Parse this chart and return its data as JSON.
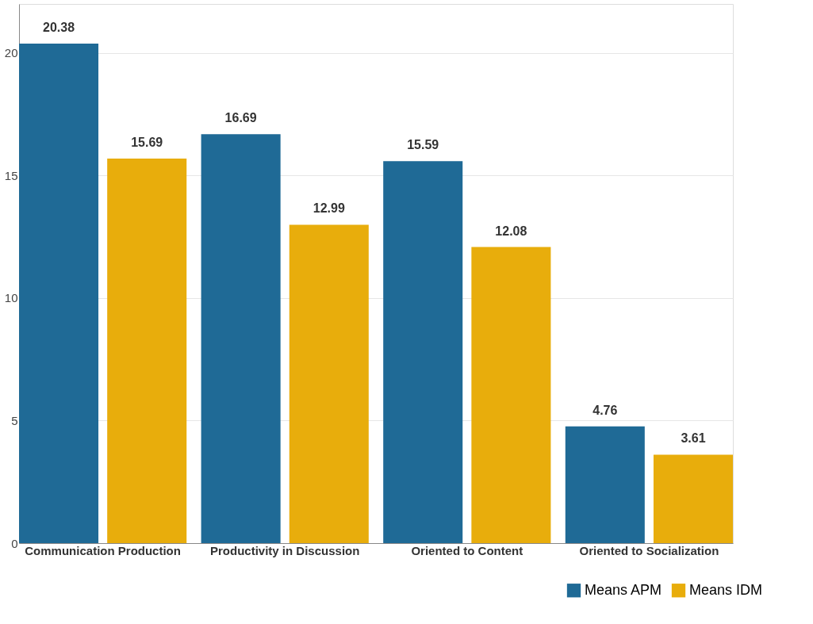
{
  "chart_data": {
    "type": "bar",
    "categories": [
      "Communication Production",
      "Productivity in Discussion",
      "Oriented to Content",
      "Oriented to Socialization"
    ],
    "series": [
      {
        "name": "Means APM",
        "color": "#1f6a96",
        "values": [
          20.38,
          16.69,
          15.59,
          4.76
        ]
      },
      {
        "name": "Means IDM",
        "color": "#e8ad0c",
        "values": [
          15.69,
          12.99,
          12.08,
          3.61
        ]
      }
    ],
    "ylim": [
      0,
      22
    ],
    "yticks": [
      0,
      5,
      10,
      15,
      20
    ],
    "grid": "y",
    "legend": "bottom right",
    "data_labels": true
  }
}
